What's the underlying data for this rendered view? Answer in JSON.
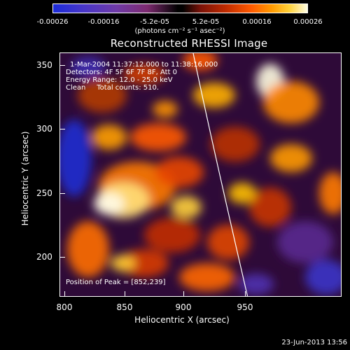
{
  "colorbar": {
    "ticks": [
      "-0.00026",
      "-0.00016",
      "-5.2e-05",
      "5.2e-05",
      "0.00016",
      "0.00026"
    ],
    "units": "(photons cm⁻² s⁻¹ asec⁻²)"
  },
  "title": "Reconstructed RHESSI Image",
  "annotation": {
    "line1": "1-Mar-2004 11:37:12.000 to 11:38:16.000",
    "line2": "Detectors: 4F 5F 6F 7F 8F, Att 0",
    "line3": "Energy Range: 12.0 - 25.0 keV",
    "line4": "Clean     Total counts: 510.",
    "peak": "Position of Peak = [852,239]"
  },
  "axes": {
    "xlabel": "Heliocentric X (arcsec)",
    "ylabel": "Heliocentric Y (arcsec)",
    "xticks": [
      "800",
      "850",
      "900",
      "950"
    ],
    "yticks": [
      "350",
      "300",
      "250",
      "200"
    ],
    "xlim": [
      800,
      990
    ],
    "ylim": [
      168,
      362
    ]
  },
  "footer": "23-Jun-2013 13:56",
  "colors": {
    "background": "#000000",
    "limb_line": "#ffffff"
  }
}
